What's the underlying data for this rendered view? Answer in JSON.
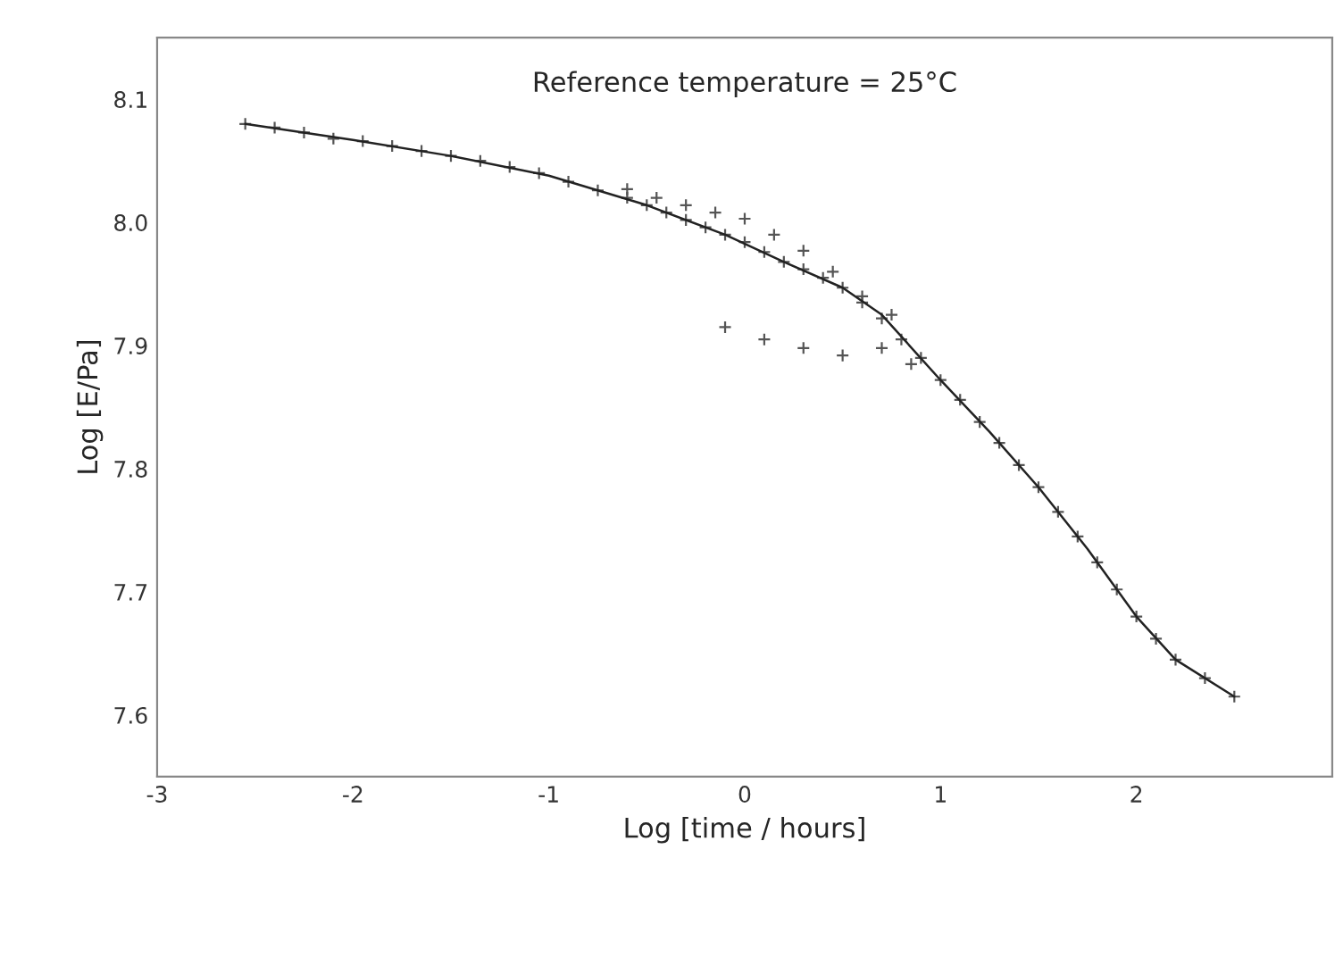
{
  "chart_data": {
    "type": "scatter",
    "title": "Reference temperature = 25°C",
    "xlabel": "Log [time / hours]",
    "ylabel": "Log [E/Pa]",
    "xlim": [
      -3,
      3
    ],
    "ylim": [
      7.55,
      8.15
    ],
    "xticks": [
      -3,
      -2,
      -1,
      0,
      1,
      2
    ],
    "yticks": [
      7.6,
      7.7,
      7.8,
      7.9,
      {
        "value": 8.0,
        "label": "8.0"
      },
      8.1
    ],
    "grid": false,
    "marker": "cross",
    "series": [
      {
        "color": "#555555",
        "x": [
          -2.55,
          -2.4,
          -2.25,
          -2.1,
          -1.95,
          -1.8,
          -1.65,
          -1.5,
          -1.35,
          -1.2,
          -1.05,
          -0.9,
          -0.75,
          -0.6,
          -0.5,
          -0.4,
          -0.3,
          -0.2,
          -0.1,
          0.0,
          0.1,
          0.2,
          0.3,
          0.4,
          0.5,
          0.6,
          0.7,
          0.8,
          0.9,
          1.0,
          1.1,
          1.2,
          1.3,
          1.4,
          1.5,
          1.6,
          1.7,
          1.8,
          1.9,
          2.0,
          2.1,
          2.2,
          2.35,
          2.5,
          -0.6,
          -0.45,
          -0.3,
          -0.15,
          0.0,
          0.15,
          0.3,
          0.45,
          0.6,
          0.75,
          -0.1,
          0.1,
          0.3,
          0.5,
          0.7,
          0.85
        ],
        "values": [
          8.08,
          8.077,
          8.073,
          8.068,
          8.066,
          8.062,
          8.058,
          8.054,
          8.05,
          8.045,
          8.04,
          8.033,
          8.026,
          8.02,
          8.014,
          8.008,
          8.002,
          7.996,
          7.99,
          7.984,
          7.976,
          7.968,
          7.962,
          7.955,
          7.947,
          7.935,
          7.922,
          7.905,
          7.89,
          7.872,
          7.856,
          7.838,
          7.821,
          7.803,
          7.785,
          7.765,
          7.745,
          7.724,
          7.702,
          7.68,
          7.662,
          7.645,
          7.63,
          7.615,
          8.027,
          8.02,
          8.014,
          8.008,
          8.003,
          7.99,
          7.977,
          7.96,
          7.94,
          7.925,
          7.915,
          7.905,
          7.898,
          7.892,
          7.898,
          7.885
        ]
      },
      {
        "type": "line",
        "color": "#222222",
        "line_style": "solid",
        "marker": "none",
        "x": [
          -2.55,
          -2.0,
          -1.5,
          -1.0,
          -0.5,
          -0.1,
          0.2,
          0.5,
          0.7,
          1.0,
          1.25,
          1.5,
          1.75,
          2.0,
          2.2,
          2.5
        ],
        "values": [
          8.08,
          8.067,
          8.054,
          8.038,
          8.014,
          7.99,
          7.968,
          7.947,
          7.925,
          7.872,
          7.83,
          7.785,
          7.735,
          7.68,
          7.645,
          7.615
        ]
      }
    ]
  }
}
